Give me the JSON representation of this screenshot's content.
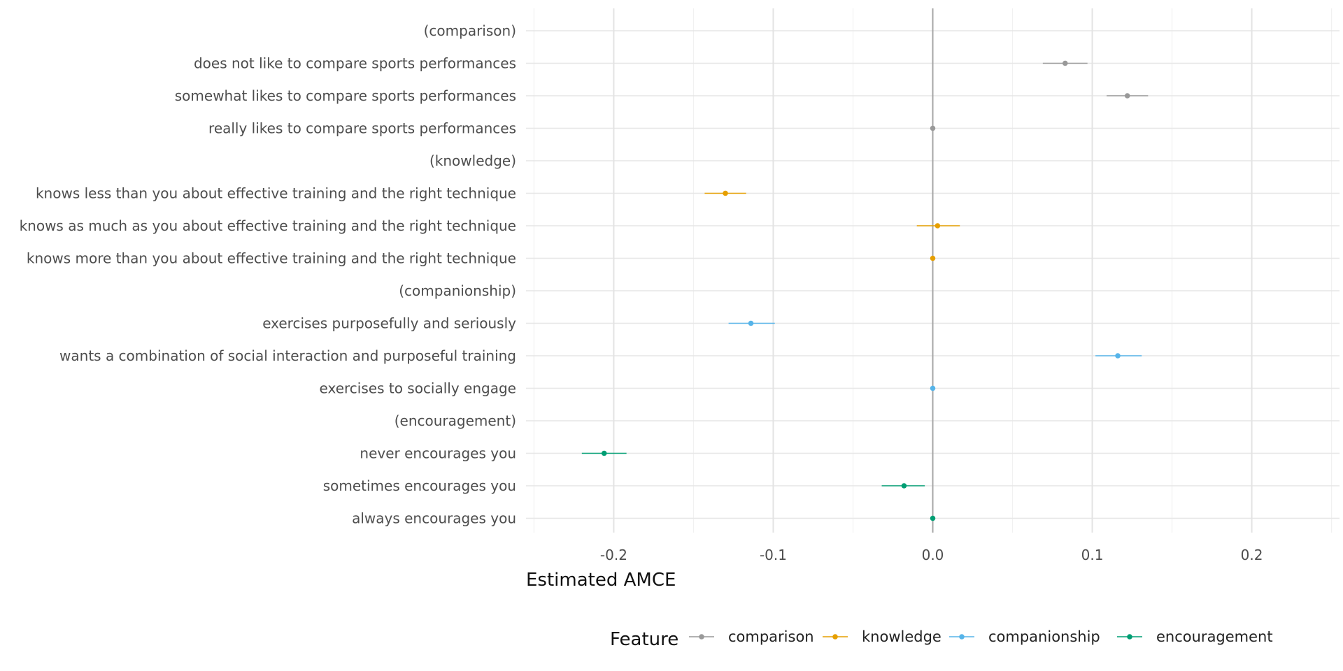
{
  "chart_data": {
    "type": "scatter",
    "xlabel": "Estimated AMCE",
    "xlim": [
      -0.255,
      0.255
    ],
    "xticks": [
      -0.2,
      -0.1,
      0.0,
      0.1,
      0.2
    ],
    "xtick_labels": [
      "-0.2",
      "-0.1",
      "0.0",
      "0.1",
      "0.2"
    ],
    "grid": true,
    "reference_line_x": 0,
    "legend_title": "Feature",
    "legend_position": "bottom",
    "series": [
      {
        "name": "comparison",
        "color": "#999999"
      },
      {
        "name": "knowledge",
        "color": "#E69F00"
      },
      {
        "name": "companionship",
        "color": "#56B4E9"
      },
      {
        "name": "encouragement",
        "color": "#009E73"
      }
    ],
    "rows": [
      {
        "label": "(comparison)",
        "header": true
      },
      {
        "label": "does not like to compare sports performances",
        "feature": "comparison",
        "estimate": 0.083,
        "lower": 0.069,
        "upper": 0.097
      },
      {
        "label": "somewhat likes to compare sports performances",
        "feature": "comparison",
        "estimate": 0.122,
        "lower": 0.109,
        "upper": 0.135
      },
      {
        "label": "really likes to compare sports performances",
        "feature": "comparison",
        "estimate": 0.0,
        "lower": 0.0,
        "upper": 0.0
      },
      {
        "label": "(knowledge)",
        "header": true
      },
      {
        "label": "knows less than you about effective training and the right technique",
        "feature": "knowledge",
        "estimate": -0.13,
        "lower": -0.143,
        "upper": -0.117
      },
      {
        "label": "knows as much as you about effective training and the right technique",
        "feature": "knowledge",
        "estimate": 0.003,
        "lower": -0.01,
        "upper": 0.017
      },
      {
        "label": "knows more than you about effective training and the right technique",
        "feature": "knowledge",
        "estimate": 0.0,
        "lower": 0.0,
        "upper": 0.0
      },
      {
        "label": "(companionship)",
        "header": true
      },
      {
        "label": "exercises purposefully and seriously",
        "feature": "companionship",
        "estimate": -0.114,
        "lower": -0.128,
        "upper": -0.099
      },
      {
        "label": "wants a combination of social interaction and purposeful training",
        "feature": "companionship",
        "estimate": 0.116,
        "lower": 0.102,
        "upper": 0.131
      },
      {
        "label": "exercises to socially engage",
        "feature": "companionship",
        "estimate": 0.0,
        "lower": 0.0,
        "upper": 0.0
      },
      {
        "label": "(encouragement)",
        "header": true
      },
      {
        "label": "never encourages you",
        "feature": "encouragement",
        "estimate": -0.206,
        "lower": -0.22,
        "upper": -0.192
      },
      {
        "label": "sometimes encourages you",
        "feature": "encouragement",
        "estimate": -0.018,
        "lower": -0.032,
        "upper": -0.005
      },
      {
        "label": "always encourages you",
        "feature": "encouragement",
        "estimate": 0.0,
        "lower": 0.0,
        "upper": 0.0
      }
    ]
  }
}
